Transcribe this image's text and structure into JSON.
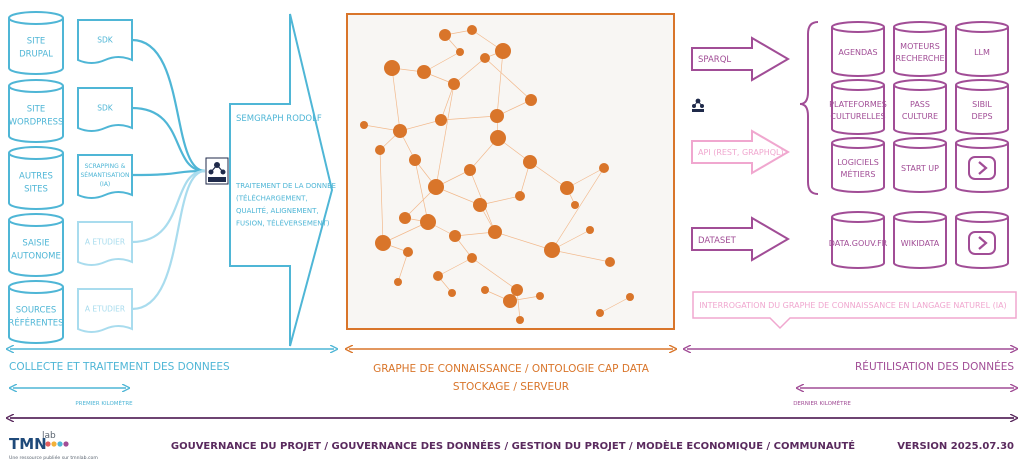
{
  "colors": {
    "blue": "#4fb6d6",
    "light_blue": "#a9dcee",
    "orange": "#d9752a",
    "purple": "#a14d96",
    "pink": "#f0a7cf",
    "dark": "#5a2a5e",
    "graph_bg": "#f8f6f3"
  },
  "sources": [
    {
      "lines": [
        "SITE",
        "DRUPAL"
      ]
    },
    {
      "lines": [
        "SITE",
        "WORDPRESS"
      ]
    },
    {
      "lines": [
        "AUTRES",
        "SITES"
      ]
    },
    {
      "lines": [
        "SAISIE",
        "AUTONOME"
      ]
    },
    {
      "lines": [
        "SOURCES",
        "RÉFÉRENTES"
      ]
    }
  ],
  "connectors": [
    {
      "lines": [
        "SDK"
      ],
      "status": "active"
    },
    {
      "lines": [
        "SDK"
      ],
      "status": "active"
    },
    {
      "lines": [
        "SCRAPPING &",
        "SÉMANTISATION",
        "(IA)"
      ],
      "status": "active"
    },
    {
      "lines": [
        "A ETUDIER"
      ],
      "status": "planned"
    },
    {
      "lines": [
        "A ETUDIER"
      ],
      "status": "planned"
    }
  ],
  "rdf_icon": "rdf-logo-icon",
  "semgraph": {
    "title": "SEMGRAPH RODOLF",
    "desc_lines": [
      "TRAITEMENT DE LA DONNÉE",
      "(TÉLÉCHARGEMENT,",
      "QUALITÉ, ALIGNEMENT,",
      "FUSION, TÉLÉVERSEMENT)"
    ]
  },
  "outputs": {
    "sparql": "SPARQL",
    "api": "API (REST, GRAPHQL)",
    "dataset": "DATASET",
    "sparql_icon": "sparql-logo-icon"
  },
  "reusers": [
    {
      "lines": [
        "AGENDAS"
      ]
    },
    {
      "lines": [
        "MOTEURS",
        "RECHERCHE"
      ]
    },
    {
      "lines": [
        "LLM"
      ]
    },
    {
      "lines": [
        "PLATEFORMES",
        "CULTURELLES"
      ]
    },
    {
      "lines": [
        "PASS",
        "CULTURE"
      ]
    },
    {
      "lines": [
        "SIBIL",
        "DEPS"
      ]
    },
    {
      "lines": [
        "LOGICIELS",
        "MÉTIERS"
      ]
    },
    {
      "lines": [
        "START UP"
      ]
    },
    {
      "lines": [
        ">"
      ]
    }
  ],
  "datasets": [
    {
      "lines": [
        "DATA.GOUV.FR"
      ]
    },
    {
      "lines": [
        "WIKIDATA"
      ]
    },
    {
      "lines": [
        ">"
      ]
    }
  ],
  "nl_query": "INTERROGATION DU GRAPHE DE CONNAISSANCE EN LANGAGE NATUREL (IA)",
  "sections": {
    "collect": "COLLECTE ET TRAITEMENT DES DONNEES",
    "graph_line1": "GRAPHE DE CONNAISSANCE / ONTOLOGIE CAP DATA",
    "graph_line2": "STOCKAGE / SERVEUR",
    "reuse": "RÉUTILISATION DES DONNÉES",
    "first_km": "PREMIER KILOMÈTRE",
    "last_km": "DERNIER KILOMÈTRE"
  },
  "footer": {
    "governance": "GOUVERNANCE DU PROJET / GOUVERNANCE DES DONNÉES / GESTION DU PROJET / MODÈLE ECONOMIQUE / COMMUNAUTÉ",
    "version": "VERSION 2025.07.30",
    "logo_main": "TMN",
    "logo_sup": "lab",
    "logo_tagline": "Une ressource publiée sur tmnlab.com"
  }
}
